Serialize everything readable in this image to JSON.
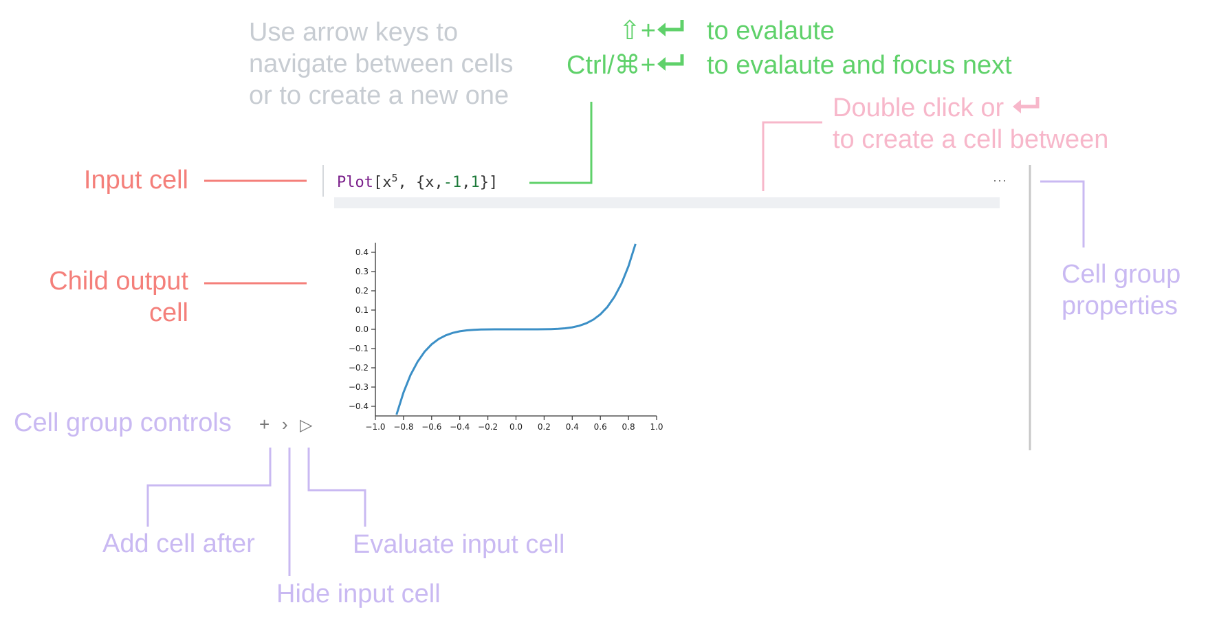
{
  "annotations": {
    "navigate_hint": [
      "Use arrow keys to",
      "navigate between cells",
      "or to create a new one"
    ],
    "eval_hint": {
      "shift_enter_keys": "⇧+",
      "shift_enter_text": "to evalaute",
      "ctrl_enter_keys": "Ctrl/⌘+",
      "ctrl_enter_text": "to evalaute and focus next"
    },
    "create_between": [
      "Double click or",
      "to create a cell between"
    ],
    "input_cell": "Input cell",
    "child_output": [
      "Child output",
      "cell"
    ],
    "group_properties": [
      "Cell group",
      "properties"
    ],
    "group_controls": "Cell group controls",
    "add_cell_after": "Add cell after",
    "hide_input_cell": "Hide input cell",
    "evaluate_input_cell": "Evaluate input cell"
  },
  "cell": {
    "code_func": "Plot",
    "code_open": "[x",
    "code_exp": "5",
    "code_mid": ", {x,",
    "code_lo": "-1",
    "code_comma": ",",
    "code_hi": "1",
    "code_close": "}]",
    "menu_dots": "···"
  },
  "controls": {
    "add": "+",
    "hide": "›",
    "eval": "▷"
  },
  "colors": {
    "red": "#f47f7a",
    "green": "#5fd16a",
    "grey": "#c7ccd2",
    "pink": "#f7b7ca",
    "purple": "#c9b9f2",
    "curve": "#3b8fc6"
  },
  "chart_data": {
    "type": "line",
    "function": "x^5",
    "x_range": [
      -1,
      1
    ],
    "xlim": [
      -1.0,
      1.0
    ],
    "ylim": [
      -0.45,
      0.45
    ],
    "x_ticks": [
      "−1.0",
      "−0.8",
      "−0.6",
      "−0.4",
      "−0.2",
      "0.0",
      "0.2",
      "0.4",
      "0.6",
      "0.8",
      "1.0"
    ],
    "y_ticks": [
      "−0.4",
      "−0.3",
      "−0.2",
      "−0.1",
      "0.0",
      "0.1",
      "0.2",
      "0.3",
      "0.4"
    ],
    "x": [
      -0.85,
      -0.8,
      -0.75,
      -0.7,
      -0.65,
      -0.6,
      -0.55,
      -0.5,
      -0.45,
      -0.4,
      -0.35,
      -0.3,
      -0.25,
      -0.2,
      -0.15,
      -0.1,
      -0.05,
      0.0,
      0.05,
      0.1,
      0.15,
      0.2,
      0.25,
      0.3,
      0.35,
      0.4,
      0.45,
      0.5,
      0.55,
      0.6,
      0.65,
      0.7,
      0.75,
      0.8,
      0.85
    ],
    "y": [
      -0.4437,
      -0.3277,
      -0.2373,
      -0.1681,
      -0.116,
      -0.0778,
      -0.0503,
      -0.0313,
      -0.0185,
      -0.0102,
      -0.0053,
      -0.0024,
      -0.001,
      -0.0003,
      -0.0001,
      0.0,
      0.0,
      0.0,
      0.0,
      0.0,
      0.0001,
      0.0003,
      0.001,
      0.0024,
      0.0053,
      0.0102,
      0.0185,
      0.0313,
      0.0503,
      0.0778,
      0.116,
      0.1681,
      0.2373,
      0.3277,
      0.4437
    ],
    "grid": false,
    "title": "",
    "xlabel": "",
    "ylabel": ""
  }
}
